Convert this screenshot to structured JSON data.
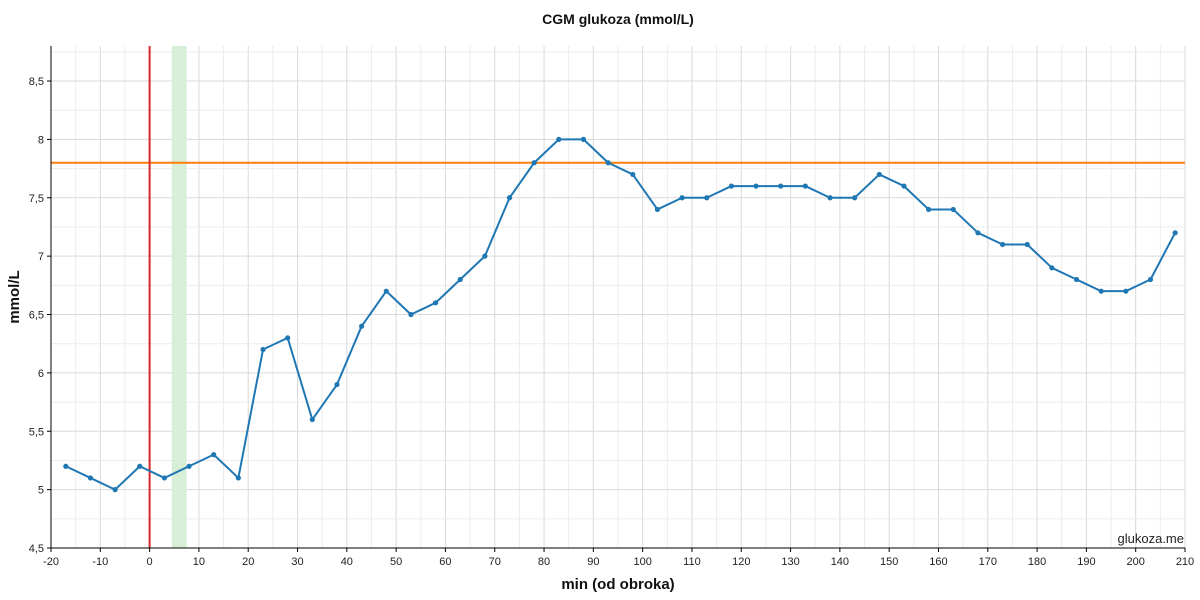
{
  "chart_data": {
    "type": "line",
    "title": "CGM glukoza (mmol/L)",
    "xlabel": "min (od obroka)",
    "ylabel": "mmol/L",
    "xlim": [
      -20,
      210
    ],
    "ylim": [
      4.5,
      8.8
    ],
    "x_ticks": [
      -20,
      -10,
      0,
      10,
      20,
      30,
      40,
      50,
      60,
      70,
      80,
      90,
      100,
      110,
      120,
      130,
      140,
      150,
      160,
      170,
      180,
      190,
      200,
      210
    ],
    "y_ticks": [
      4.5,
      5,
      5.5,
      6,
      6.5,
      7,
      7.5,
      8,
      8.5
    ],
    "x_tick_labels": [
      "-20",
      "-10",
      "0",
      "10",
      "20",
      "30",
      "40",
      "50",
      "60",
      "70",
      "80",
      "90",
      "100",
      "110",
      "120",
      "130",
      "140",
      "150",
      "160",
      "170",
      "180",
      "190",
      "200",
      "210"
    ],
    "y_tick_labels": [
      "4,5",
      "5",
      "5,5",
      "6",
      "6,5",
      "7",
      "7,5",
      "8",
      "8,5"
    ],
    "grid": true,
    "series": [
      {
        "color": "#1f77b4",
        "x": [
          -17,
          -12,
          -7,
          -2,
          3,
          8,
          13,
          18,
          23,
          28,
          33,
          38,
          43,
          48,
          53,
          58,
          63,
          68,
          73,
          78,
          83,
          88,
          93,
          98,
          103,
          108,
          113,
          118,
          123,
          128,
          133,
          138,
          143,
          148,
          153,
          158,
          163,
          168,
          173,
          178,
          183,
          188,
          193,
          198,
          203,
          208
        ],
        "y": [
          5.2,
          5.1,
          5.0,
          5.2,
          5.1,
          5.2,
          5.3,
          5.1,
          6.2,
          6.3,
          5.6,
          5.9,
          6.4,
          6.7,
          6.5,
          6.6,
          6.8,
          7.0,
          7.5,
          7.8,
          8.0,
          8.0,
          7.8,
          7.7,
          7.4,
          7.5,
          7.5,
          7.6,
          7.6,
          7.6,
          7.6,
          7.5,
          7.5,
          7.7,
          7.6,
          7.4,
          7.4,
          7.2,
          7.1,
          7.1,
          6.9,
          6.8,
          6.7,
          6.7,
          6.8,
          7.2
        ]
      }
    ],
    "reference_lines": [
      {
        "orientation": "horizontal",
        "value": 7.8,
        "color": "#ff7f0e"
      },
      {
        "orientation": "vertical",
        "value": 0,
        "color": "#d62728"
      }
    ],
    "shaded_regions": [
      {
        "orientation": "vertical",
        "from": 4.5,
        "to": 7.5,
        "color": "#d6efd6"
      }
    ],
    "watermark": "glukoza.me"
  }
}
